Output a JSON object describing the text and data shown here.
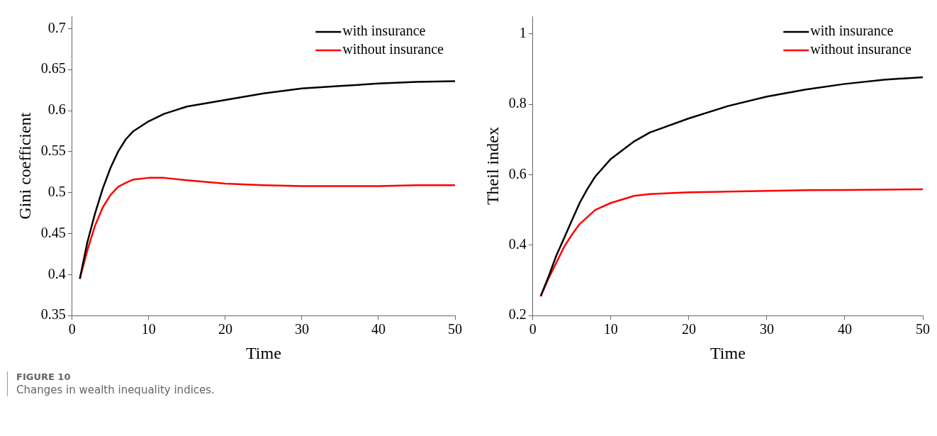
{
  "chart_data": [
    {
      "type": "line",
      "xlabel": "Time",
      "ylabel": "Gini coefficient",
      "xlim": [
        0,
        50
      ],
      "xticks": [
        0,
        10,
        20,
        30,
        40,
        50
      ],
      "ylim": [
        0.35,
        0.715
      ],
      "yticks": [
        0.35,
        0.4,
        0.45,
        0.5,
        0.55,
        0.6,
        0.65,
        0.7
      ],
      "grid": false,
      "legend": "top right",
      "line_style": "solid",
      "marker": "none",
      "annotations": [
        "FIGURE 10",
        "Changes in wealth inequality indices."
      ],
      "series": [
        {
          "name": "with insurance",
          "color": "#000000",
          "x": [
            1,
            2,
            3,
            4,
            5,
            6,
            7,
            8,
            10,
            12,
            15,
            20,
            25,
            30,
            35,
            40,
            45,
            50
          ],
          "values": [
            0.395,
            0.44,
            0.475,
            0.505,
            0.53,
            0.55,
            0.565,
            0.575,
            0.587,
            0.596,
            0.605,
            0.613,
            0.621,
            0.627,
            0.63,
            0.633,
            0.635,
            0.636
          ]
        },
        {
          "name": "without insurance",
          "color": "#ff0000",
          "x": [
            1,
            2,
            3,
            4,
            5,
            6,
            7,
            8,
            10,
            12,
            15,
            20,
            25,
            30,
            35,
            40,
            45,
            50
          ],
          "values": [
            0.395,
            0.43,
            0.46,
            0.482,
            0.497,
            0.507,
            0.512,
            0.516,
            0.518,
            0.518,
            0.515,
            0.511,
            0.509,
            0.508,
            0.508,
            0.508,
            0.509,
            0.509
          ]
        }
      ]
    },
    {
      "type": "line",
      "xlabel": "Time",
      "ylabel": "Theil index",
      "xlim": [
        0,
        50
      ],
      "xticks": [
        0,
        10,
        20,
        30,
        40,
        50
      ],
      "ylim": [
        0.2,
        1.05
      ],
      "yticks": [
        {
          "value": 0.2,
          "label": "0.2"
        },
        {
          "value": 0.4,
          "label": "0.4"
        },
        {
          "value": 0.6,
          "label": "0.6"
        },
        {
          "value": 0.8,
          "label": "0.8"
        },
        1
      ],
      "grid": false,
      "legend": "top right",
      "line_style": "solid",
      "marker": "none",
      "series": [
        {
          "name": "with insurance",
          "color": "#000000",
          "x": [
            1,
            2,
            3,
            4,
            5,
            6,
            7,
            8,
            10,
            13,
            15,
            20,
            25,
            30,
            35,
            40,
            45,
            50
          ],
          "values": [
            0.255,
            0.31,
            0.37,
            0.42,
            0.47,
            0.52,
            0.56,
            0.595,
            0.645,
            0.695,
            0.72,
            0.76,
            0.795,
            0.822,
            0.842,
            0.858,
            0.87,
            0.877
          ]
        },
        {
          "name": "without insurance",
          "color": "#ff0000",
          "x": [
            1,
            2,
            3,
            4,
            5,
            6,
            7,
            8,
            10,
            13,
            15,
            20,
            25,
            30,
            35,
            40,
            45,
            50
          ],
          "values": [
            0.255,
            0.305,
            0.35,
            0.395,
            0.43,
            0.46,
            0.48,
            0.5,
            0.52,
            0.54,
            0.545,
            0.55,
            0.552,
            0.554,
            0.556,
            0.557,
            0.558,
            0.559
          ]
        }
      ]
    }
  ]
}
